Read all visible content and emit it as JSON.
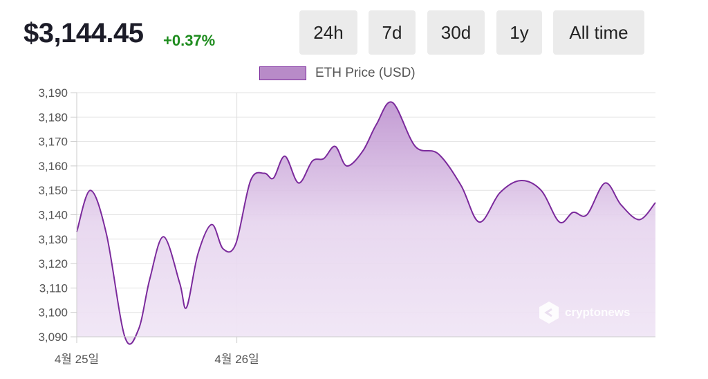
{
  "header": {
    "price": "$3,144.45",
    "change": "+0.37%"
  },
  "ranges": [
    {
      "label": "24h",
      "active": true
    },
    {
      "label": "7d",
      "active": false
    },
    {
      "label": "30d",
      "active": false
    },
    {
      "label": "1y",
      "active": false
    },
    {
      "label": "All time",
      "active": false
    }
  ],
  "watermark": "cryptonews",
  "colors": {
    "accent": "#7b2a9c",
    "line": "#7b2a9c",
    "positive": "#1e8c1e"
  },
  "chart_data": {
    "type": "area",
    "title": "",
    "xlabel": "",
    "ylabel": "",
    "legend": "top",
    "grid": true,
    "ylim": [
      3090,
      3190
    ],
    "yticks": [
      3090,
      3100,
      3110,
      3120,
      3130,
      3140,
      3150,
      3160,
      3170,
      3180,
      3190
    ],
    "ytick_labels": [
      "3,090",
      "3,100",
      "3,110",
      "3,120",
      "3,130",
      "3,140",
      "3,150",
      "3,160",
      "3,170",
      "3,180",
      "3,190"
    ],
    "xlim": [
      0,
      25.3
    ],
    "xticks": [
      {
        "x": 0,
        "label": "4월 25일"
      },
      {
        "x": 7,
        "label": "4월 26일"
      }
    ],
    "series": [
      {
        "name": "ETH Price (USD)",
        "x": [
          0,
          0.6,
          1.3,
          2.1,
          2.7,
          3.2,
          3.8,
          4.5,
          4.8,
          5.3,
          5.9,
          6.4,
          6.95,
          7.6,
          8.2,
          8.6,
          9.1,
          9.7,
          10.3,
          10.8,
          11.3,
          11.8,
          12.5,
          13.1,
          13.8,
          14.8,
          15.8,
          16.8,
          17.6,
          18.5,
          19.4,
          20.3,
          21.1,
          21.7,
          22.3,
          23.1,
          23.8,
          24.6,
          25.3
        ],
        "y": [
          3133,
          3150,
          3132,
          3090,
          3093,
          3114,
          3131,
          3112,
          3102,
          3124,
          3136,
          3126,
          3128,
          3154,
          3157,
          3155,
          3164,
          3153,
          3162,
          3163,
          3168,
          3160,
          3166,
          3177,
          3186,
          3168,
          3165,
          3152,
          3137,
          3149,
          3154,
          3150,
          3137,
          3141,
          3140,
          3153,
          3144,
          3138,
          3145
        ]
      }
    ]
  }
}
